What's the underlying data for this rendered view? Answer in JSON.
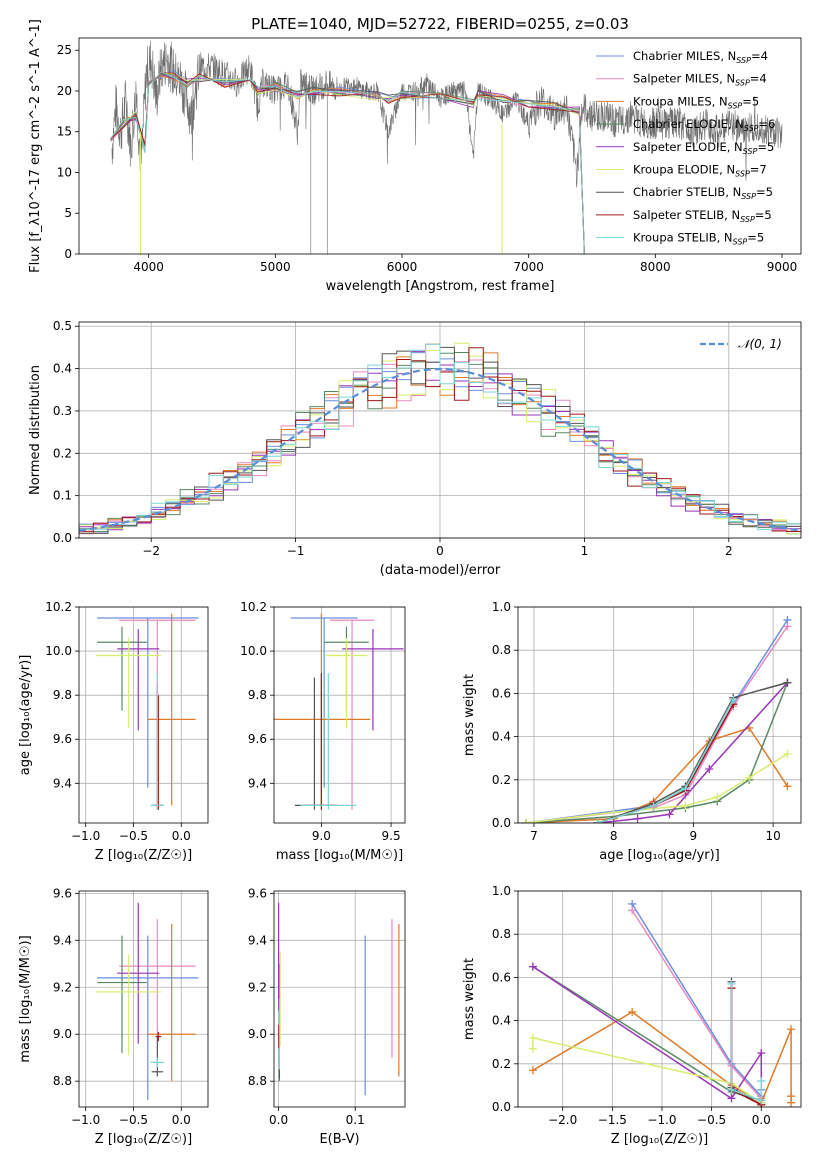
{
  "figure_title": "PLATE=1040, MJD=52722, FIBERID=0255, z=0.03",
  "colors": {
    "Chabrier MILES": "#6a8fe0",
    "Salpeter MILES": "#e88ac2",
    "Kroupa MILES": "#e07b2a",
    "Chabrier ELODIE": "#5a8a64",
    "Salpeter ELODIE": "#9a35b8",
    "Kroupa ELODIE": "#d8ec6e",
    "Chabrier STELIB": "#555555",
    "Salpeter STELIB": "#a01818",
    "Kroupa STELIB": "#7ad6d6",
    "normal": "#5a8ed8"
  },
  "chart_data": [
    {
      "id": "spectrum",
      "type": "line",
      "title": "PLATE=1040, MJD=52722, FIBERID=0255, z=0.03",
      "xlabel": "wavelength [Angstrom, rest frame]",
      "ylabel": "Flux [f_λ10^-17 erg cm^-2 s^-1 A^-1]",
      "xlim": [
        3450,
        9150
      ],
      "ylim": [
        0,
        26.5
      ],
      "xticks": [
        4000,
        5000,
        6000,
        7000,
        8000,
        9000
      ],
      "yticks": [
        0,
        5,
        10,
        15,
        20,
        25
      ],
      "grid": false,
      "legend_position": "top-right",
      "legend": [
        {
          "label": "Chabrier MILES, N",
          "sub": "SSP",
          "suffix": "=4"
        },
        {
          "label": "Salpeter MILES, N",
          "sub": "SSP",
          "suffix": "=4"
        },
        {
          "label": "Kroupa MILES, N",
          "sub": "SSP",
          "suffix": "=5"
        },
        {
          "label": "Chabrier ELODIE, N",
          "sub": "SSP",
          "suffix": "=6"
        },
        {
          "label": "Salpeter ELODIE, N",
          "sub": "SSP",
          "suffix": "=5"
        },
        {
          "label": "Kroupa ELODIE, N",
          "sub": "SSP",
          "suffix": "=7"
        },
        {
          "label": "Chabrier STELIB, N",
          "sub": "SSP",
          "suffix": "=5"
        },
        {
          "label": "Salpeter STELIB, N",
          "sub": "SSP",
          "suffix": "=5"
        },
        {
          "label": "Kroupa STELIB, N",
          "sub": "SSP",
          "suffix": "=5"
        }
      ],
      "data_x": [
        3710,
        3740,
        3780,
        3820,
        3860,
        3900,
        3940,
        3980,
        4020,
        4060,
        4100,
        4150,
        4200,
        4260,
        4340,
        4400,
        4500,
        4600,
        4700,
        4800,
        4861,
        4900,
        5000,
        5100,
        5176,
        5200,
        5300,
        5400,
        5500,
        5600,
        5700,
        5800,
        5893,
        6000,
        6100,
        6200,
        6300,
        6400,
        6500,
        6563,
        6600,
        6700,
        6800,
        6900,
        7000,
        7100,
        7200,
        7300,
        7380,
        7420,
        7500,
        7600,
        7700,
        7800,
        7900,
        8000,
        8100,
        8200,
        8300,
        8400,
        8500,
        8600,
        8700,
        8800,
        8900,
        9000
      ],
      "data_y": [
        13,
        18,
        15,
        19,
        13,
        20,
        11,
        22,
        24,
        19,
        23,
        24,
        22,
        21,
        17,
        23,
        23,
        22,
        21,
        23,
        18,
        21,
        20,
        21,
        15,
        21,
        20,
        21,
        20,
        21,
        20,
        20,
        15,
        20,
        20,
        21,
        19,
        20,
        20,
        12,
        20,
        19,
        17,
        19,
        16,
        19,
        17,
        18,
        10,
        18,
        17,
        17,
        16,
        17,
        16,
        16,
        16,
        16,
        15,
        16,
        15,
        16,
        15,
        16,
        15,
        15
      ],
      "model_x": [
        3700,
        3800,
        3900,
        3970,
        4000,
        4100,
        4200,
        4300,
        4400,
        4500,
        4600,
        4800,
        4861,
        5000,
        5176,
        5300,
        5500,
        5800,
        5893,
        6000,
        6300,
        6563,
        6600,
        6800,
        7000,
        7200,
        7400,
        7440
      ],
      "model_y": [
        14,
        16,
        17,
        13,
        21,
        22,
        22,
        21,
        21.5,
        21.5,
        21,
        21,
        20,
        20.5,
        19.5,
        20,
        20,
        19.5,
        19,
        19.5,
        19.5,
        18.5,
        19.5,
        19,
        18.5,
        18,
        17.5,
        0
      ]
    },
    {
      "id": "residuals",
      "type": "step",
      "xlabel": "(data-model)/error",
      "ylabel": "Normed distribution",
      "xlim": [
        -2.5,
        2.5
      ],
      "ylim": [
        0,
        0.51
      ],
      "xticks": [
        -2,
        -1,
        0,
        1,
        2
      ],
      "yticks": [
        0.0,
        0.1,
        0.2,
        0.3,
        0.4,
        0.5
      ],
      "grid": true,
      "legend_position": "top-right",
      "legend": [
        {
          "label": "𝒩(0, 1)"
        }
      ],
      "bin_width": 0.1
    },
    {
      "id": "age-vs-Z",
      "type": "errorbar",
      "xlabel": "Z [log₁₀(Z/Z☉)]",
      "ylabel": "age  [log₁₀(age/yr)]",
      "xlim": [
        -1.07,
        0.28
      ],
      "ylim": [
        9.22,
        10.2
      ],
      "xticks": [
        -1.0,
        -0.5,
        0.0
      ],
      "yticks": [
        9.4,
        9.6,
        9.8,
        10.0,
        10.2
      ],
      "grid": true,
      "points": [
        {
          "model": "Chabrier MILES",
          "x": -0.35,
          "xerr": 0.53,
          "y": 10.15,
          "yerr": [
            0.77,
            0.0
          ]
        },
        {
          "model": "Salpeter MILES",
          "x": -0.25,
          "xerr": 0.4,
          "y": 10.14,
          "yerr": [
            0.86,
            0.0
          ]
        },
        {
          "model": "Kroupa MILES",
          "x": -0.1,
          "xerr": 0.25,
          "y": 9.69,
          "yerr": [
            0.39,
            0.48
          ]
        },
        {
          "model": "Chabrier ELODIE",
          "x": -0.62,
          "xerr": 0.26,
          "y": 10.04,
          "yerr": [
            0.31,
            0.07
          ]
        },
        {
          "model": "Salpeter ELODIE",
          "x": -0.45,
          "xerr": 0.22,
          "y": 10.01,
          "yerr": [
            0.37,
            0.09
          ]
        },
        {
          "model": "Kroupa ELODIE",
          "x": -0.55,
          "xerr": 0.34,
          "y": 9.98,
          "yerr": [
            0.33,
            0.08
          ]
        },
        {
          "model": "Chabrier STELIB",
          "x": -0.25,
          "xerr": 0.06,
          "y": 9.3,
          "yerr": [
            0.02,
            0.55
          ]
        },
        {
          "model": "Salpeter STELIB",
          "x": -0.24,
          "xerr": 0.03,
          "y": 9.3,
          "yerr": [
            0.02,
            0.5
          ]
        },
        {
          "model": "Kroupa STELIB",
          "x": -0.25,
          "xerr": 0.07,
          "y": 9.3,
          "yerr": [
            0.02,
            0.6
          ]
        }
      ]
    },
    {
      "id": "age-vs-mass",
      "type": "errorbar",
      "xlabel": "mass [log₁₀(M/M☉)]",
      "ylabel": "",
      "xlim": [
        8.66,
        9.6
      ],
      "ylim": [
        9.22,
        10.2
      ],
      "xticks": [
        9.0,
        9.5
      ],
      "yticks": [
        9.4,
        9.6,
        9.8,
        10.0,
        10.2
      ],
      "grid": true,
      "points": [
        {
          "model": "Chabrier MILES",
          "x": 9.02,
          "xerr": 0.24,
          "y": 10.15,
          "yerr": [
            0.77,
            0.0
          ]
        },
        {
          "model": "Salpeter MILES",
          "x": 9.22,
          "xerr": 0.16,
          "y": 10.14,
          "yerr": [
            0.86,
            0.0
          ]
        },
        {
          "model": "Kroupa MILES",
          "x": 9.0,
          "xerr": 0.35,
          "y": 9.69,
          "yerr": [
            0.39,
            0.48
          ]
        },
        {
          "model": "Chabrier ELODIE",
          "x": 9.18,
          "xerr": 0.16,
          "y": 10.04,
          "yerr": [
            0.31,
            0.07
          ]
        },
        {
          "model": "Salpeter ELODIE",
          "x": 9.37,
          "xerr": 0.22,
          "y": 10.01,
          "yerr": [
            0.37,
            0.09
          ]
        },
        {
          "model": "Kroupa ELODIE",
          "x": 9.18,
          "xerr": 0.15,
          "y": 9.98,
          "yerr": [
            0.33,
            0.08
          ]
        },
        {
          "model": "Chabrier STELIB",
          "x": 8.95,
          "xerr": 0.14,
          "y": 9.3,
          "yerr": [
            0.02,
            0.58
          ]
        },
        {
          "model": "Salpeter STELIB",
          "x": 9.0,
          "xerr": 0.12,
          "y": 9.3,
          "yerr": [
            0.02,
            0.6
          ]
        },
        {
          "model": "Kroupa STELIB",
          "x": 9.05,
          "xerr": 0.2,
          "y": 9.3,
          "yerr": [
            0.02,
            0.6
          ]
        }
      ]
    },
    {
      "id": "mass-weight-vs-age",
      "type": "line",
      "xlabel": "age  [log₁₀(age/yr)]",
      "ylabel": "mass weight",
      "xlim": [
        6.8,
        10.35
      ],
      "ylim": [
        0,
        1.0
      ],
      "xticks": [
        7,
        8,
        9,
        10
      ],
      "yticks": [
        0.0,
        0.2,
        0.4,
        0.6,
        0.8,
        1.0
      ],
      "grid": true,
      "series": [
        {
          "name": "Chabrier MILES",
          "x": [
            6.9,
            8.5,
            8.9,
            9.5,
            10.18
          ],
          "y": [
            0.0,
            0.08,
            0.15,
            0.55,
            0.94
          ]
        },
        {
          "name": "Salpeter MILES",
          "x": [
            6.9,
            8.5,
            8.9,
            9.5,
            10.18
          ],
          "y": [
            0.0,
            0.07,
            0.13,
            0.54,
            0.91
          ]
        },
        {
          "name": "Kroupa MILES",
          "x": [
            6.9,
            8.0,
            8.5,
            9.2,
            9.7,
            10.18
          ],
          "y": [
            0.0,
            0.02,
            0.1,
            0.38,
            0.44,
            0.17
          ]
        },
        {
          "name": "Chabrier ELODIE",
          "x": [
            6.9,
            8.0,
            8.9,
            9.3,
            9.7,
            10.18
          ],
          "y": [
            0.0,
            0.03,
            0.07,
            0.1,
            0.2,
            0.65
          ]
        },
        {
          "name": "Salpeter ELODIE",
          "x": [
            7.8,
            8.3,
            8.7,
            9.2,
            10.18
          ],
          "y": [
            0.0,
            0.02,
            0.04,
            0.25,
            0.65
          ]
        },
        {
          "name": "Kroupa ELODIE",
          "x": [
            6.9,
            8.0,
            8.9,
            9.3,
            9.7,
            10.18
          ],
          "y": [
            0.0,
            0.05,
            0.08,
            0.12,
            0.21,
            0.32
          ]
        },
        {
          "name": "Chabrier STELIB",
          "x": [
            7.8,
            8.5,
            8.9,
            9.5,
            10.18
          ],
          "y": [
            0.0,
            0.09,
            0.17,
            0.58,
            0.65
          ]
        },
        {
          "name": "Salpeter STELIB",
          "x": [
            7.8,
            8.5,
            8.9,
            9.5
          ],
          "y": [
            0.0,
            0.08,
            0.15,
            0.55
          ]
        },
        {
          "name": "Kroupa STELIB",
          "x": [
            7.8,
            8.5,
            8.9,
            9.5
          ],
          "y": [
            0.0,
            0.08,
            0.16,
            0.57
          ]
        }
      ]
    },
    {
      "id": "mass-vs-Z",
      "type": "errorbar",
      "xlabel": "Z [log₁₀(Z/Z☉)]",
      "ylabel": "mass [log₁₀(M/M☉)]",
      "xlim": [
        -1.07,
        0.28
      ],
      "ylim": [
        8.69,
        9.61
      ],
      "xticks": [
        -1.0,
        -0.5,
        0.0
      ],
      "yticks": [
        8.8,
        9.0,
        9.2,
        9.4,
        9.6
      ],
      "grid": true,
      "points": [
        {
          "model": "Chabrier MILES",
          "x": -0.35,
          "xerr": 0.53,
          "y": 9.24,
          "yerr": [
            0.52,
            0.18
          ]
        },
        {
          "model": "Salpeter MILES",
          "x": -0.25,
          "xerr": 0.4,
          "y": 9.29,
          "yerr": [
            0.3,
            0.2
          ]
        },
        {
          "model": "Kroupa MILES",
          "x": -0.1,
          "xerr": 0.25,
          "y": 9.0,
          "yerr": [
            0.2,
            0.47
          ]
        },
        {
          "model": "Chabrier ELODIE",
          "x": -0.62,
          "xerr": 0.26,
          "y": 9.22,
          "yerr": [
            0.3,
            0.2
          ]
        },
        {
          "model": "Salpeter ELODIE",
          "x": -0.45,
          "xerr": 0.22,
          "y": 9.26,
          "yerr": [
            0.3,
            0.3
          ]
        },
        {
          "model": "Kroupa ELODIE",
          "x": -0.55,
          "xerr": 0.34,
          "y": 9.18,
          "yerr": [
            0.27,
            0.16
          ]
        },
        {
          "model": "Chabrier STELIB",
          "x": -0.25,
          "xerr": 0.06,
          "y": 8.84,
          "yerr": [
            0.02,
            0.15
          ]
        },
        {
          "model": "Salpeter STELIB",
          "x": -0.24,
          "xerr": 0.03,
          "y": 8.99,
          "yerr": [
            0.02,
            0.02
          ]
        },
        {
          "model": "Kroupa STELIB",
          "x": -0.25,
          "xerr": 0.07,
          "y": 8.88,
          "yerr": [
            0.02,
            0.02
          ]
        }
      ]
    },
    {
      "id": "mass-vs-ebv",
      "type": "errorbar",
      "xlabel": "E(B-V)",
      "ylabel": "",
      "xlim": [
        -0.006,
        0.165
      ],
      "ylim": [
        8.69,
        9.61
      ],
      "xticks": [
        0.0,
        0.1
      ],
      "yticks": [
        8.8,
        9.0,
        9.2,
        9.4,
        9.6
      ],
      "grid": true,
      "points": [
        {
          "model": "Chabrier MILES",
          "x": 0.113,
          "xerr": 0.0,
          "y": 9.0,
          "yerr": [
            0.26,
            0.42
          ]
        },
        {
          "model": "Salpeter MILES",
          "x": 0.148,
          "xerr": 0.0,
          "y": 9.2,
          "yerr": [
            0.3,
            0.29
          ]
        },
        {
          "model": "Kroupa MILES",
          "x": 0.157,
          "xerr": 0.0,
          "y": 9.2,
          "yerr": [
            0.38,
            0.27
          ]
        },
        {
          "model": "Chabrier ELODIE",
          "x": 0.001,
          "xerr": 0.0,
          "y": 9.1,
          "yerr": [
            0.3,
            0.2
          ]
        },
        {
          "model": "Salpeter ELODIE",
          "x": 0.0,
          "xerr": 0.0,
          "y": 9.3,
          "yerr": [
            0.2,
            0.26
          ]
        },
        {
          "model": "Kroupa ELODIE",
          "x": 0.002,
          "xerr": 0.0,
          "y": 9.2,
          "yerr": [
            0.25,
            0.15
          ]
        },
        {
          "model": "Chabrier STELIB",
          "x": 0.001,
          "xerr": 0.0,
          "y": 8.9,
          "yerr": [
            0.09,
            0.1
          ]
        },
        {
          "model": "Salpeter STELIB",
          "x": 0.0,
          "xerr": 0.0,
          "y": 8.99,
          "yerr": [
            0.05,
            0.05
          ]
        },
        {
          "model": "Kroupa STELIB",
          "x": 0.001,
          "xerr": 0.0,
          "y": 9.0,
          "yerr": [
            0.15,
            0.15
          ]
        }
      ]
    },
    {
      "id": "mass-weight-vs-Z",
      "type": "line",
      "xlabel": "Z [log₁₀(Z/Z☉)]",
      "ylabel": "mass weight",
      "xlim": [
        -2.45,
        0.4
      ],
      "ylim": [
        0,
        1.0
      ],
      "xticks": [
        -2.0,
        -1.5,
        -1.0,
        -0.5,
        0.0
      ],
      "yticks": [
        0.0,
        0.2,
        0.4,
        0.6,
        0.8,
        1.0
      ],
      "grid": true,
      "series": [
        {
          "name": "Chabrier MILES",
          "x": [
            -1.3,
            -0.3,
            0.0,
            0.0
          ],
          "y": [
            0.94,
            0.2,
            0.05,
            0.08
          ]
        },
        {
          "name": "Salpeter MILES",
          "x": [
            -1.3,
            -0.3,
            0.0
          ],
          "y": [
            0.91,
            0.19,
            0.04
          ]
        },
        {
          "name": "Kroupa MILES",
          "x": [
            -2.3,
            -1.3,
            -0.3,
            0.0,
            0.3,
            0.3,
            0.3
          ],
          "y": [
            0.17,
            0.44,
            0.1,
            0.02,
            0.36,
            0.05,
            0.02
          ]
        },
        {
          "name": "Chabrier ELODIE",
          "x": [
            -2.3,
            -0.3,
            0.0
          ],
          "y": [
            0.65,
            0.07,
            0.03
          ]
        },
        {
          "name": "Salpeter ELODIE",
          "x": [
            -2.3,
            -0.3,
            0.0,
            0.0
          ],
          "y": [
            0.65,
            0.04,
            0.25,
            0.02
          ]
        },
        {
          "name": "Kroupa ELODIE",
          "x": [
            -2.3,
            -2.3,
            -0.3,
            0.0
          ],
          "y": [
            0.27,
            0.32,
            0.11,
            0.02
          ]
        },
        {
          "name": "Chabrier STELIB",
          "x": [
            -0.3,
            -0.3,
            0.0
          ],
          "y": [
            0.58,
            0.09,
            0.01
          ]
        },
        {
          "name": "Salpeter STELIB",
          "x": [
            -0.3,
            -0.3,
            0.0
          ],
          "y": [
            0.55,
            0.08,
            0.01
          ]
        },
        {
          "name": "Kroupa STELIB",
          "x": [
            -0.3,
            -0.3,
            0.0,
            0.0
          ],
          "y": [
            0.57,
            0.08,
            0.03,
            0.12
          ]
        }
      ]
    }
  ]
}
